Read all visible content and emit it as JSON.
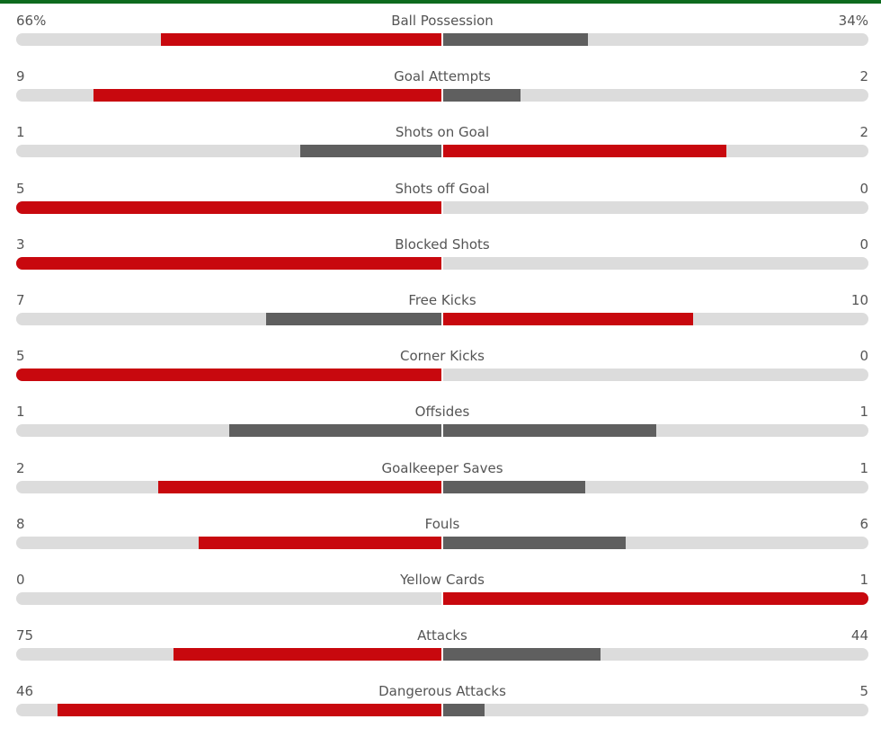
{
  "colors": {
    "leader_bar": "#c8080e",
    "trailer_bar": "#5f5f5f",
    "track": "#dcdcdc",
    "header_accent": "#0d6b1e"
  },
  "stats": [
    {
      "name": "Ball Possession",
      "home": "66%",
      "away": "34%",
      "home_share": 0.66,
      "away_share": 0.34
    },
    {
      "name": "Goal Attempts",
      "home": "9",
      "away": "2",
      "home_share": 0.818,
      "away_share": 0.182
    },
    {
      "name": "Shots on Goal",
      "home": "1",
      "away": "2",
      "home_share": 0.333,
      "away_share": 0.667
    },
    {
      "name": "Shots off Goal",
      "home": "5",
      "away": "0",
      "home_share": 1.0,
      "away_share": 0.0
    },
    {
      "name": "Blocked Shots",
      "home": "3",
      "away": "0",
      "home_share": 1.0,
      "away_share": 0.0
    },
    {
      "name": "Free Kicks",
      "home": "7",
      "away": "10",
      "home_share": 0.412,
      "away_share": 0.588
    },
    {
      "name": "Corner Kicks",
      "home": "5",
      "away": "0",
      "home_share": 1.0,
      "away_share": 0.0
    },
    {
      "name": "Offsides",
      "home": "1",
      "away": "1",
      "home_share": 0.5,
      "away_share": 0.5
    },
    {
      "name": "Goalkeeper Saves",
      "home": "2",
      "away": "1",
      "home_share": 0.667,
      "away_share": 0.333
    },
    {
      "name": "Fouls",
      "home": "8",
      "away": "6",
      "home_share": 0.571,
      "away_share": 0.429
    },
    {
      "name": "Yellow Cards",
      "home": "0",
      "away": "1",
      "home_share": 0.0,
      "away_share": 1.0
    },
    {
      "name": "Attacks",
      "home": "75",
      "away": "44",
      "home_share": 0.63,
      "away_share": 0.37
    },
    {
      "name": "Dangerous Attacks",
      "home": "46",
      "away": "5",
      "home_share": 0.902,
      "away_share": 0.098
    }
  ]
}
